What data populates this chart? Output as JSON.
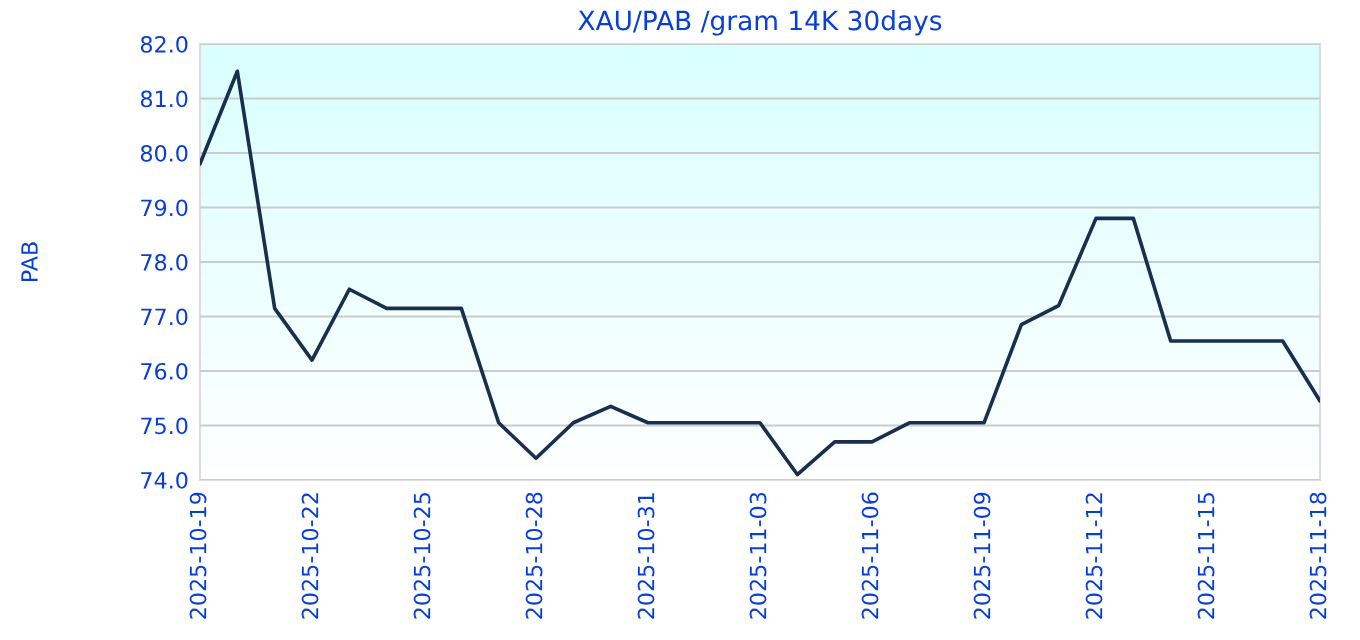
{
  "chart_data": {
    "type": "line",
    "title": "XAU/PAB /gram 14K 30days",
    "ylabel": "PAB",
    "x": [
      "2025-10-19",
      "2025-10-20",
      "2025-10-21",
      "2025-10-22",
      "2025-10-23",
      "2025-10-24",
      "2025-10-25",
      "2025-10-26",
      "2025-10-27",
      "2025-10-28",
      "2025-10-29",
      "2025-10-30",
      "2025-10-31",
      "2025-11-01",
      "2025-11-02",
      "2025-11-03",
      "2025-11-04",
      "2025-11-05",
      "2025-11-06",
      "2025-11-07",
      "2025-11-08",
      "2025-11-09",
      "2025-11-10",
      "2025-11-11",
      "2025-11-12",
      "2025-11-13",
      "2025-11-14",
      "2025-11-15",
      "2025-11-16",
      "2025-11-17",
      "2025-11-18"
    ],
    "series": [
      {
        "color": "#1a2e4f",
        "values": [
          79.8,
          81.5,
          77.15,
          76.2,
          77.5,
          77.15,
          77.15,
          77.15,
          75.05,
          74.4,
          75.05,
          75.35,
          75.05,
          75.05,
          75.05,
          75.05,
          74.1,
          74.7,
          74.7,
          75.05,
          75.05,
          75.05,
          76.85,
          77.2,
          78.8,
          78.8,
          76.55,
          76.55,
          76.55,
          76.55,
          75.45
        ]
      }
    ],
    "xlim": [
      "2025-10-19",
      "2025-11-18"
    ],
    "xticks": [
      "2025-10-19",
      "2025-10-22",
      "2025-10-25",
      "2025-10-28",
      "2025-10-31",
      "2025-11-03",
      "2025-11-06",
      "2025-11-09",
      "2025-11-12",
      "2025-11-15",
      "2025-11-18"
    ],
    "ylim": [
      74,
      82
    ],
    "yticks": [
      {
        "value": 74,
        "label": "74.0"
      },
      {
        "value": 75,
        "label": "75.0"
      },
      {
        "value": 76,
        "label": "76.0"
      },
      {
        "value": 77,
        "label": "77.0"
      },
      {
        "value": 78,
        "label": "78.0"
      },
      {
        "value": 79,
        "label": "79.0"
      },
      {
        "value": 80,
        "label": "80.0"
      },
      {
        "value": 81,
        "label": "81.0"
      },
      {
        "value": 82,
        "label": "82.0"
      }
    ],
    "grid": "y",
    "marker": "none",
    "line_style": "solid",
    "legend": false
  }
}
